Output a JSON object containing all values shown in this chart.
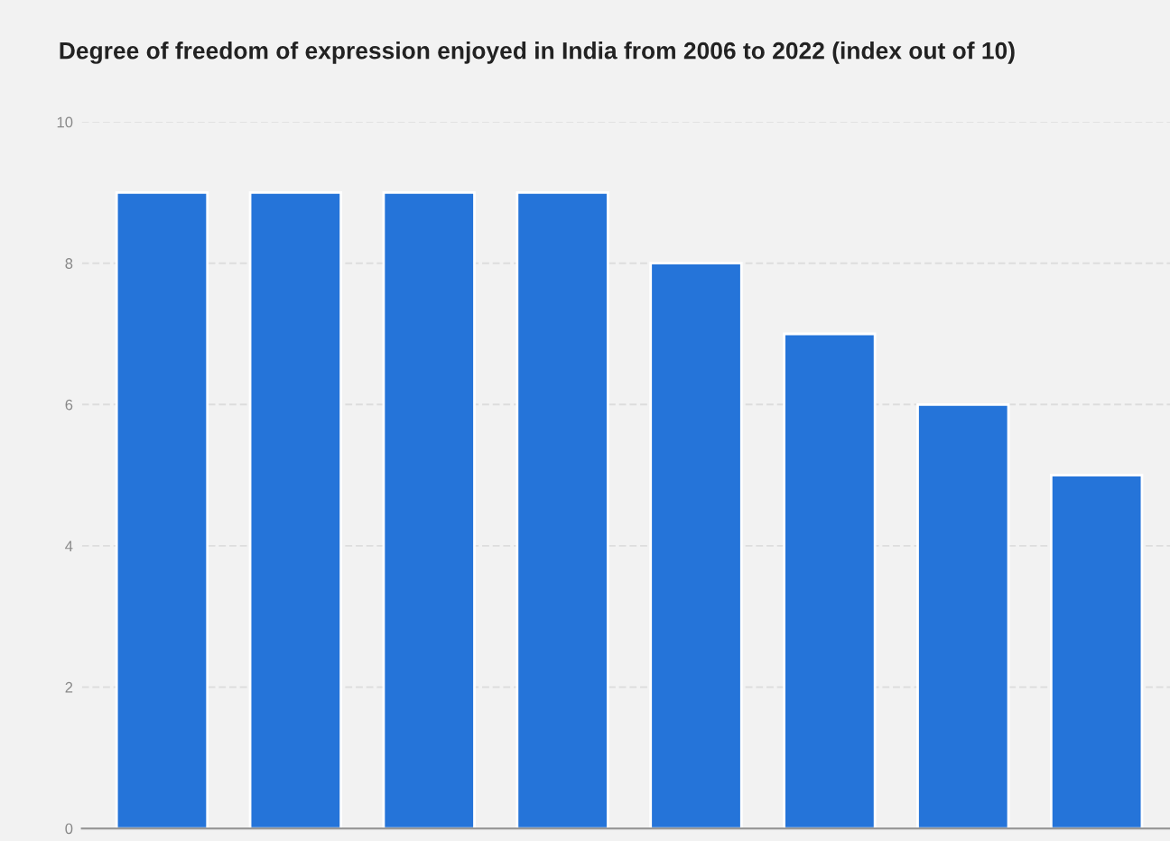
{
  "chart_data": {
    "type": "bar",
    "title": "Degree of freedom of expression enjoyed in India from 2006 to 2022 (index out of 10)",
    "categories": [
      null,
      null,
      null,
      null,
      null,
      null,
      null,
      null
    ],
    "values": [
      9,
      9,
      9,
      9,
      8,
      7,
      6,
      5
    ],
    "color": "#2574d9",
    "ylim": [
      0,
      10
    ],
    "yticks": [
      0,
      2,
      4,
      6,
      8,
      10
    ],
    "grid": "y"
  }
}
